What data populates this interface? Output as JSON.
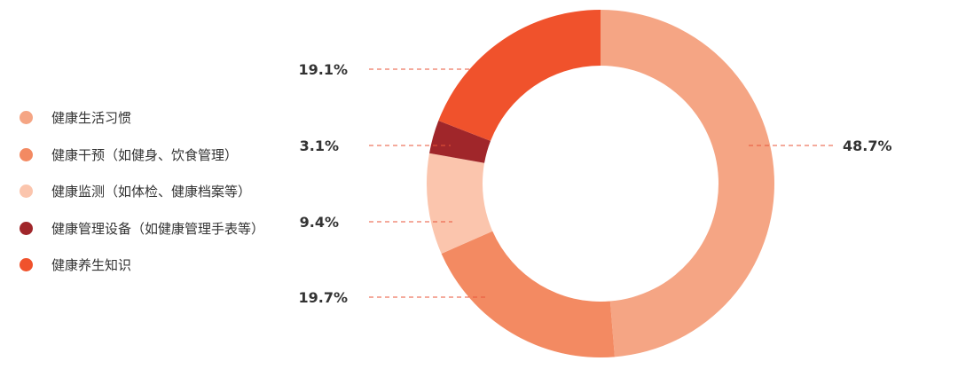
{
  "chart_data": {
    "type": "pie",
    "variant": "donut",
    "legend_position": "left",
    "categories": [
      "健康生活习惯",
      "健康干预（如健身、饮食管理）",
      "健康监测（如体检、健康档案等）",
      "健康管理设备（如健康管理手表等）",
      "健康养生知识"
    ],
    "values": [
      48.7,
      19.7,
      9.4,
      3.1,
      19.1
    ],
    "value_labels": [
      "48.7%",
      "19.7%",
      "9.4%",
      "3.1%",
      "19.1%"
    ],
    "colors": [
      "#F5A584",
      "#F38A62",
      "#FBC5AD",
      "#A0262A",
      "#F0522C"
    ],
    "leader_line_color": "#E8553A",
    "label_color": "#333333"
  }
}
